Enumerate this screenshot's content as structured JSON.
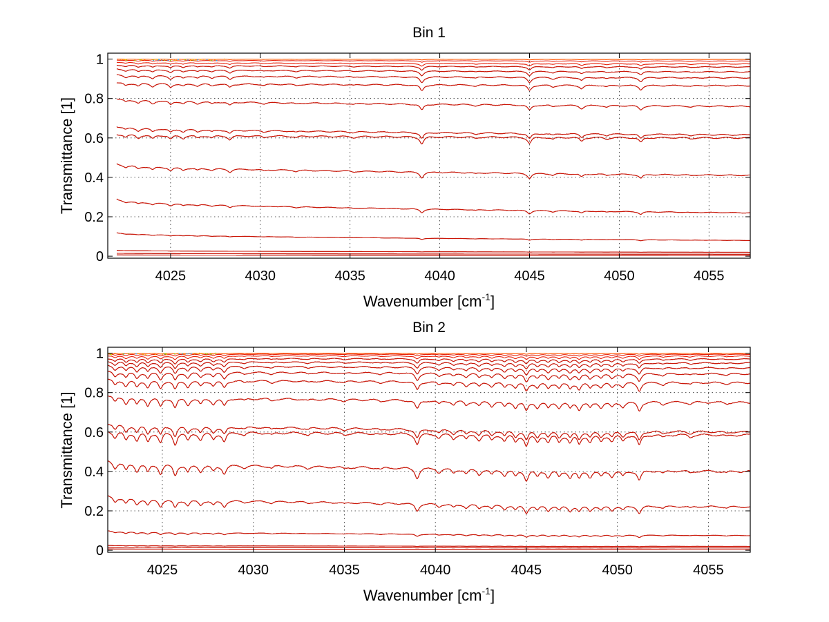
{
  "colors": {
    "trace_main": "#8b0000",
    "trace_overlay": "#e8200a",
    "trace_top": "#ff5500",
    "noise_accents": [
      "#f5c400",
      "#22aaff",
      "#88d400",
      "#ff8a00"
    ]
  },
  "chart_data": [
    {
      "type": "line",
      "title": "Bin 1",
      "xlabel_base": "Wavenumber [cm",
      "xlabel_sup": "-1",
      "xlabel_close": "]",
      "ylabel": "Transmittance [1]",
      "xlim": [
        4021.5,
        4057.3
      ],
      "ylim": [
        -0.01,
        1.03
      ],
      "xticks": [
        4025,
        4030,
        4035,
        4040,
        4045,
        4050,
        4055
      ],
      "yticks": [
        0,
        0.2,
        0.4,
        0.6,
        0.8,
        1
      ],
      "xtick_labels": [
        "4025",
        "4030",
        "4035",
        "4040",
        "4045",
        "4050",
        "4055"
      ],
      "ytick_labels": [
        "0",
        "0.2",
        "0.4",
        "0.6",
        "0.8",
        "1"
      ],
      "grid": true,
      "legend": "none",
      "x_start": 4022.0,
      "x_end": 4057.3,
      "absorption_lines": [
        {
          "x": 4022.5,
          "depth": 0.35
        },
        {
          "x": 4023.2,
          "depth": 0.45
        },
        {
          "x": 4024.0,
          "depth": 0.5
        },
        {
          "x": 4025.0,
          "depth": 0.55
        },
        {
          "x": 4025.7,
          "depth": 0.4
        },
        {
          "x": 4026.5,
          "depth": 0.35
        },
        {
          "x": 4027.3,
          "depth": 0.3
        },
        {
          "x": 4028.3,
          "depth": 0.55
        },
        {
          "x": 4030.2,
          "depth": 0.2
        },
        {
          "x": 4032.0,
          "depth": 0.2
        },
        {
          "x": 4035.2,
          "depth": 0.15
        },
        {
          "x": 4039.0,
          "depth": 1.0
        },
        {
          "x": 4042.0,
          "depth": 0.2
        },
        {
          "x": 4045.0,
          "depth": 0.9
        },
        {
          "x": 4046.3,
          "depth": 0.3
        },
        {
          "x": 4047.9,
          "depth": 0.55
        },
        {
          "x": 4049.3,
          "depth": 0.25
        },
        {
          "x": 4051.2,
          "depth": 0.7
        },
        {
          "x": 4054.0,
          "depth": 0.15
        }
      ],
      "series": [
        {
          "level_start": 0.007,
          "level_end": 0.004,
          "line_scale": 0.0
        },
        {
          "level_start": 0.015,
          "level_end": 0.01,
          "line_scale": 0.0
        },
        {
          "level_start": 0.03,
          "level_end": 0.02,
          "line_scale": 0.001
        },
        {
          "level_start": 0.12,
          "level_end": 0.08,
          "line_scale": 0.006
        },
        {
          "level_start": 0.29,
          "level_end": 0.22,
          "line_scale": 0.018
        },
        {
          "level_start": 0.47,
          "level_end": 0.41,
          "line_scale": 0.028
        },
        {
          "level_start": 0.62,
          "level_end": 0.6,
          "line_scale": 0.035
        },
        {
          "level_start": 0.66,
          "level_end": 0.615,
          "line_scale": 0.03
        },
        {
          "level_start": 0.8,
          "level_end": 0.76,
          "line_scale": 0.03
        },
        {
          "level_start": 0.88,
          "level_end": 0.865,
          "line_scale": 0.03
        },
        {
          "level_start": 0.92,
          "level_end": 0.905,
          "line_scale": 0.028
        },
        {
          "level_start": 0.95,
          "level_end": 0.935,
          "line_scale": 0.022
        },
        {
          "level_start": 0.97,
          "level_end": 0.96,
          "line_scale": 0.018
        },
        {
          "level_start": 0.985,
          "level_end": 0.975,
          "line_scale": 0.014
        },
        {
          "level_start": 0.995,
          "level_end": 0.99,
          "line_scale": 0.008
        },
        {
          "level_start": 1.0,
          "level_end": 0.998,
          "line_scale": 0.003
        }
      ]
    },
    {
      "type": "line",
      "title": "Bin 2",
      "xlabel_base": "Wavenumber [cm",
      "xlabel_sup": "-1",
      "xlabel_close": "]",
      "ylabel": "Transmittance [1]",
      "xlim": [
        4022.0,
        4057.3
      ],
      "ylim": [
        -0.01,
        1.03
      ],
      "xticks": [
        4025,
        4030,
        4035,
        4040,
        4045,
        4050,
        4055
      ],
      "yticks": [
        0,
        0.2,
        0.4,
        0.6,
        0.8,
        1
      ],
      "xtick_labels": [
        "4025",
        "4030",
        "4035",
        "4040",
        "4045",
        "4050",
        "4055"
      ],
      "ytick_labels": [
        "0",
        "0.2",
        "0.4",
        "0.6",
        "0.8",
        "1"
      ],
      "grid": true,
      "legend": "none",
      "x_start": 4022.0,
      "x_end": 4057.3,
      "absorption_lines": [
        {
          "x": 4022.4,
          "depth": 0.6
        },
        {
          "x": 4023.0,
          "depth": 0.7
        },
        {
          "x": 4023.6,
          "depth": 0.75
        },
        {
          "x": 4024.2,
          "depth": 0.8
        },
        {
          "x": 4024.9,
          "depth": 0.9
        },
        {
          "x": 4025.7,
          "depth": 1.0
        },
        {
          "x": 4026.4,
          "depth": 0.7
        },
        {
          "x": 4027.1,
          "depth": 0.6
        },
        {
          "x": 4027.8,
          "depth": 0.55
        },
        {
          "x": 4028.4,
          "depth": 0.75
        },
        {
          "x": 4029.5,
          "depth": 0.2
        },
        {
          "x": 4031.0,
          "depth": 0.2
        },
        {
          "x": 4033.0,
          "depth": 0.15
        },
        {
          "x": 4035.0,
          "depth": 0.15
        },
        {
          "x": 4037.0,
          "depth": 0.15
        },
        {
          "x": 4039.0,
          "depth": 0.9
        },
        {
          "x": 4040.2,
          "depth": 0.35
        },
        {
          "x": 4041.0,
          "depth": 0.4
        },
        {
          "x": 4041.7,
          "depth": 0.45
        },
        {
          "x": 4042.4,
          "depth": 0.5
        },
        {
          "x": 4043.1,
          "depth": 0.5
        },
        {
          "x": 4043.8,
          "depth": 0.55
        },
        {
          "x": 4044.4,
          "depth": 0.6
        },
        {
          "x": 4045.0,
          "depth": 0.95
        },
        {
          "x": 4045.6,
          "depth": 0.6
        },
        {
          "x": 4046.2,
          "depth": 0.65
        },
        {
          "x": 4046.8,
          "depth": 0.6
        },
        {
          "x": 4047.4,
          "depth": 0.65
        },
        {
          "x": 4047.9,
          "depth": 0.75
        },
        {
          "x": 4048.5,
          "depth": 0.6
        },
        {
          "x": 4049.1,
          "depth": 0.55
        },
        {
          "x": 4049.7,
          "depth": 0.55
        },
        {
          "x": 4050.3,
          "depth": 0.5
        },
        {
          "x": 4051.2,
          "depth": 0.9
        },
        {
          "x": 4052.5,
          "depth": 0.25
        },
        {
          "x": 4054.0,
          "depth": 0.2
        },
        {
          "x": 4056.0,
          "depth": 0.15
        }
      ],
      "series": [
        {
          "level_start": 0.007,
          "level_end": 0.004,
          "line_scale": 0.0
        },
        {
          "level_start": 0.016,
          "level_end": 0.012,
          "line_scale": 0.001
        },
        {
          "level_start": 0.025,
          "level_end": 0.02,
          "line_scale": 0.002
        },
        {
          "level_start": 0.1,
          "level_end": 0.075,
          "line_scale": 0.012
        },
        {
          "level_start": 0.28,
          "level_end": 0.22,
          "line_scale": 0.04
        },
        {
          "level_start": 0.46,
          "level_end": 0.4,
          "line_scale": 0.055
        },
        {
          "level_start": 0.61,
          "level_end": 0.585,
          "line_scale": 0.06
        },
        {
          "level_start": 0.65,
          "level_end": 0.6,
          "line_scale": 0.05
        },
        {
          "level_start": 0.79,
          "level_end": 0.75,
          "line_scale": 0.05
        },
        {
          "level_start": 0.87,
          "level_end": 0.85,
          "line_scale": 0.045
        },
        {
          "level_start": 0.91,
          "level_end": 0.895,
          "line_scale": 0.04
        },
        {
          "level_start": 0.94,
          "level_end": 0.925,
          "line_scale": 0.035
        },
        {
          "level_start": 0.96,
          "level_end": 0.95,
          "line_scale": 0.03
        },
        {
          "level_start": 0.975,
          "level_end": 0.97,
          "line_scale": 0.025
        },
        {
          "level_start": 0.988,
          "level_end": 0.985,
          "line_scale": 0.018
        },
        {
          "level_start": 0.996,
          "level_end": 0.994,
          "line_scale": 0.01
        },
        {
          "level_start": 1.0,
          "level_end": 0.999,
          "line_scale": 0.004
        }
      ]
    }
  ]
}
